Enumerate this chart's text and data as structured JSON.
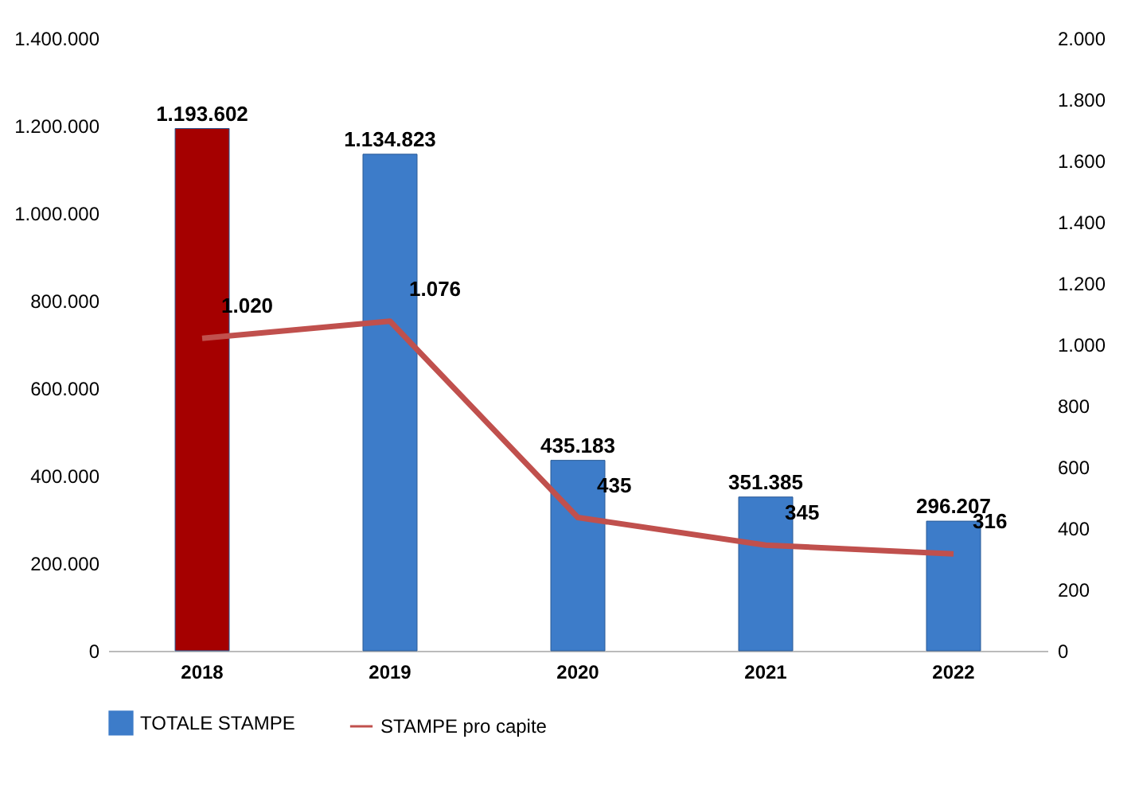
{
  "chart_data": {
    "type": "bar",
    "categories": [
      "2018",
      "2019",
      "2020",
      "2021",
      "2022"
    ],
    "series": [
      {
        "name": "TOTALE STAMPE",
        "color": "#3d7cc9",
        "colors": [
          "#a50000",
          "#3d7cc9",
          "#3d7cc9",
          "#3d7cc9",
          "#3d7cc9"
        ],
        "values": [
          1193602,
          1134823,
          435183,
          351385,
          296207
        ],
        "value_labels": [
          "1.193.602",
          "1.134.823",
          "435.183",
          "351.385",
          "296.207"
        ]
      },
      {
        "name": "STAMPE pro capite",
        "type": "line",
        "axis": "y2",
        "color": "#c0504d",
        "values": [
          1020,
          1076,
          435,
          345,
          316
        ],
        "value_labels": [
          "1.020",
          "1.076",
          "435",
          "345",
          "316"
        ]
      }
    ],
    "ylim": [
      0,
      1400000
    ],
    "yticks": [
      0,
      {
        "value": 200000,
        "label": "200.000"
      },
      {
        "value": 400000,
        "label": "400.000"
      },
      {
        "value": 600000,
        "label": "600.000"
      },
      {
        "value": 800000,
        "label": "800.000"
      },
      {
        "value": 1000000,
        "label": "1.000.000"
      },
      {
        "value": 1200000,
        "label": "1.200.000"
      },
      {
        "value": 1400000,
        "label": "1.400.000"
      }
    ],
    "y2lim": [
      0,
      2000
    ],
    "y2ticks": [
      0,
      200,
      400,
      600,
      800,
      {
        "value": 1000,
        "label": "1.000"
      },
      {
        "value": 1200,
        "label": "1.200"
      },
      {
        "value": 1400,
        "label": "1.400"
      },
      {
        "value": 1600,
        "label": "1.600"
      },
      {
        "value": 1800,
        "label": "1.800"
      },
      {
        "value": 2000,
        "label": "2.000"
      }
    ],
    "legend": "bottom",
    "grid": false
  }
}
